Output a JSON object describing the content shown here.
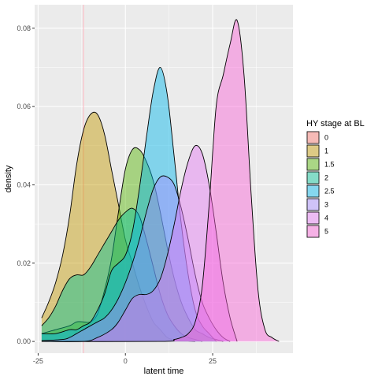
{
  "chart_data": {
    "type": "area",
    "subtype": "density",
    "xlabel": "latent time",
    "ylabel": "density",
    "xlim": [
      -26,
      48
    ],
    "ylim": [
      -0.003,
      0.086
    ],
    "x_ticks": [
      -25,
      0,
      25
    ],
    "x_tick_labels": [
      "-25",
      "0",
      "25"
    ],
    "y_ticks": [
      0.0,
      0.02,
      0.04,
      0.06,
      0.08
    ],
    "y_tick_labels": [
      "0.00",
      "0.02",
      "0.04",
      "0.06",
      "0.08"
    ],
    "vline": {
      "x": -12,
      "color": "#ffb6c1"
    },
    "legend": {
      "title": "HY stage at BL",
      "placement": "right"
    },
    "series": [
      {
        "name": "0",
        "color": "#F8766D",
        "x": [],
        "y": []
      },
      {
        "name": "1",
        "color": "#C49A00",
        "x": [
          -24,
          -22,
          -20,
          -18,
          -16,
          -14,
          -12,
          -10,
          -8,
          -6,
          -4,
          -2,
          0,
          2,
          4,
          6,
          8,
          10,
          12,
          14,
          16,
          18,
          20
        ],
        "y": [
          0.006,
          0.01,
          0.015,
          0.022,
          0.032,
          0.045,
          0.054,
          0.058,
          0.058,
          0.053,
          0.044,
          0.035,
          0.026,
          0.02,
          0.014,
          0.009,
          0.005,
          0.003,
          0.001,
          0.0005,
          0.0002,
          0.0001,
          0
        ]
      },
      {
        "name": "1.5",
        "color": "#53B400",
        "x": [
          -24,
          -20,
          -16,
          -14,
          -12,
          -10,
          -8,
          -6,
          -4,
          -2,
          0,
          2,
          4,
          6,
          8,
          10,
          12,
          14,
          16,
          18,
          20,
          22,
          24,
          26,
          28
        ],
        "y": [
          0.002,
          0.003,
          0.004,
          0.005,
          0.005,
          0.005,
          0.007,
          0.013,
          0.021,
          0.033,
          0.044,
          0.049,
          0.049,
          0.046,
          0.041,
          0.033,
          0.024,
          0.016,
          0.01,
          0.006,
          0.003,
          0.002,
          0.001,
          0.0005,
          0
        ]
      },
      {
        "name": "2",
        "color": "#00C094",
        "x": [
          -24,
          -22,
          -20,
          -18,
          -16,
          -14,
          -12,
          -10,
          -8,
          -6,
          -4,
          -2,
          0,
          2,
          4,
          6,
          8,
          10,
          12,
          14,
          16,
          18,
          20,
          22
        ],
        "y": [
          0.004,
          0.006,
          0.009,
          0.013,
          0.016,
          0.017,
          0.017,
          0.019,
          0.022,
          0.025,
          0.028,
          0.031,
          0.033,
          0.034,
          0.032,
          0.026,
          0.019,
          0.012,
          0.007,
          0.004,
          0.002,
          0.001,
          0.0005,
          0
        ]
      },
      {
        "name": "2.5",
        "color": "#00B6EB",
        "x": [
          -24,
          -20,
          -16,
          -14,
          -12,
          -10,
          -8,
          -6,
          -4,
          -2,
          0,
          2,
          4,
          6,
          8,
          10,
          12,
          14,
          16,
          18,
          20,
          22,
          24,
          26
        ],
        "y": [
          0.002,
          0.002,
          0.003,
          0.003,
          0.004,
          0.005,
          0.008,
          0.012,
          0.018,
          0.02,
          0.022,
          0.028,
          0.039,
          0.052,
          0.064,
          0.07,
          0.063,
          0.047,
          0.03,
          0.017,
          0.008,
          0.004,
          0.002,
          0
        ]
      },
      {
        "name": "3",
        "color": "#A58AFF",
        "x": [
          -24,
          -18,
          -16,
          -14,
          -12,
          -10,
          -8,
          -6,
          -4,
          -2,
          0,
          2,
          4,
          6,
          8,
          10,
          12,
          14,
          16,
          18,
          20,
          22,
          24,
          26,
          28,
          30
        ],
        "y": [
          0.0002,
          0.0005,
          0.001,
          0.002,
          0.003,
          0.004,
          0.005,
          0.006,
          0.008,
          0.011,
          0.015,
          0.02,
          0.026,
          0.033,
          0.039,
          0.042,
          0.042,
          0.04,
          0.034,
          0.026,
          0.017,
          0.01,
          0.006,
          0.003,
          0.001,
          0
        ]
      },
      {
        "name": "4",
        "color": "#E577F5",
        "x": [
          -24,
          -12,
          -8,
          -4,
          -2,
          0,
          2,
          4,
          6,
          8,
          10,
          12,
          14,
          16,
          18,
          20,
          22,
          24,
          26,
          28,
          30,
          32
        ],
        "y": [
          0,
          0,
          0.001,
          0.003,
          0.005,
          0.008,
          0.011,
          0.012,
          0.012,
          0.013,
          0.016,
          0.022,
          0.03,
          0.039,
          0.046,
          0.05,
          0.048,
          0.04,
          0.028,
          0.015,
          0.006,
          0
        ]
      },
      {
        "name": "5",
        "color": "#FB61D7",
        "x": [
          -24,
          10,
          14,
          16,
          18,
          20,
          22,
          24,
          26,
          28,
          30,
          32,
          34,
          36,
          38,
          40,
          42,
          44
        ],
        "y": [
          0,
          0,
          0.0005,
          0.001,
          0.002,
          0.005,
          0.014,
          0.035,
          0.06,
          0.068,
          0.076,
          0.082,
          0.068,
          0.038,
          0.013,
          0.003,
          0.001,
          0
        ]
      }
    ]
  }
}
